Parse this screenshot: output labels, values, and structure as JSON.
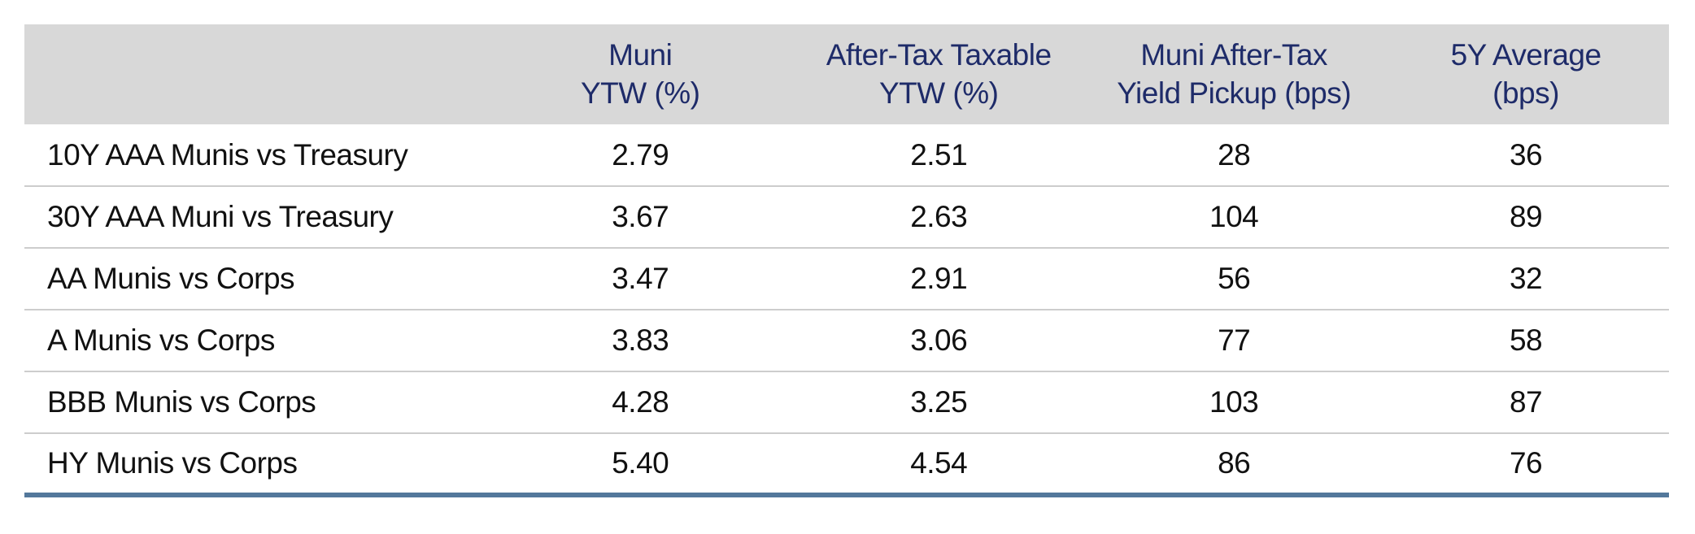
{
  "colors": {
    "header_bg": "#d8d8d8",
    "header_text": "#1e2b69",
    "body_text": "#111111",
    "row_divider": "#cdcdcd",
    "bottom_rule": "#53789b"
  },
  "table": {
    "columns": [
      {
        "line1": "",
        "line2": ""
      },
      {
        "line1": "Muni",
        "line2": "YTW (%)"
      },
      {
        "line1": "After-Tax Taxable",
        "line2": "YTW (%)"
      },
      {
        "line1": "Muni After-Tax",
        "line2": "Yield Pickup (bps)"
      },
      {
        "line1": "5Y Average",
        "line2": "(bps)"
      }
    ],
    "rows": [
      {
        "label": "10Y AAA Munis vs Treasury",
        "values": [
          "2.79",
          "2.51",
          "28",
          "36"
        ]
      },
      {
        "label": "30Y AAA Muni vs Treasury",
        "values": [
          "3.67",
          "2.63",
          "104",
          "89"
        ]
      },
      {
        "label": "AA Munis vs Corps",
        "values": [
          "3.47",
          "2.91",
          "56",
          "32"
        ]
      },
      {
        "label": "A Munis vs Corps",
        "values": [
          "3.83",
          "3.06",
          "77",
          "58"
        ]
      },
      {
        "label": "BBB Munis vs Corps",
        "values": [
          "4.28",
          "3.25",
          "103",
          "87"
        ]
      },
      {
        "label": "HY Munis vs Corps",
        "values": [
          "5.40",
          "4.54",
          "86",
          "76"
        ]
      }
    ]
  },
  "chart_data": {
    "type": "table",
    "columns": [
      "",
      "Muni YTW (%)",
      "After-Tax Taxable YTW (%)",
      "Muni After-Tax Yield Pickup (bps)",
      "5Y Average (bps)"
    ],
    "rows": [
      [
        "10Y AAA Munis vs Treasury",
        2.79,
        2.51,
        28,
        36
      ],
      [
        "30Y AAA Muni vs Treasury",
        3.67,
        2.63,
        104,
        89
      ],
      [
        "AA Munis vs Corps",
        3.47,
        2.91,
        56,
        32
      ],
      [
        "A Munis vs Corps",
        3.83,
        3.06,
        77,
        58
      ],
      [
        "BBB Munis vs Corps",
        4.28,
        3.25,
        103,
        87
      ],
      [
        "HY Munis vs Corps",
        5.4,
        4.54,
        86,
        76
      ]
    ]
  }
}
